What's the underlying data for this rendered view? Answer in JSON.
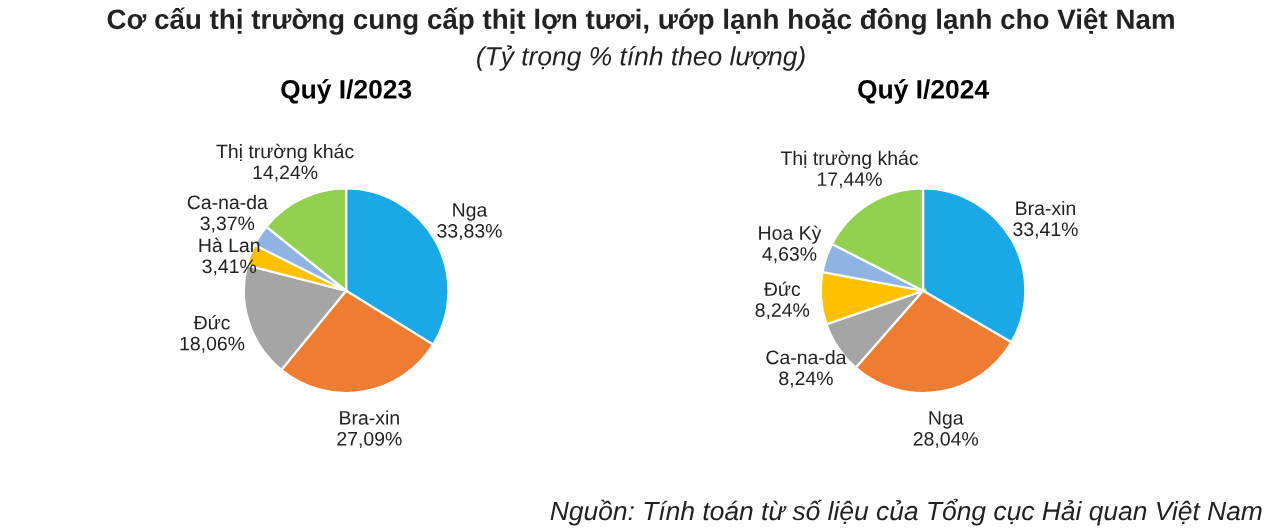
{
  "chart_data": [
    {
      "type": "pie",
      "title": "Quý I/2023",
      "annotations": [
        "Cơ cấu thị trường cung cấp thịt lợn tươi, ướp lạnh hoặc đông lạnh cho Việt Nam",
        "(Tỷ trọng % tính theo lượng)",
        "Nguồn: Tính toán từ số liệu của Tổng cục Hải quan Việt Nam"
      ],
      "categories": [
        "Nga",
        "Bra-xin",
        "Đức",
        "Hà Lan",
        "Ca-na-da",
        "Thị trường khác"
      ],
      "values": [
        33.83,
        27.09,
        18.06,
        3.41,
        3.37,
        14.24
      ],
      "value_labels": [
        "33,83%",
        "27,09%",
        "18,06%",
        "3,41%",
        "3,37%",
        "14,24%"
      ],
      "colors": [
        "#1aa9e6",
        "#ee7d31",
        "#a5a5a5",
        "#ffc000",
        "#8fb4e3",
        "#92d050"
      ],
      "legend": false
    },
    {
      "type": "pie",
      "title": "Quý I/2024",
      "categories": [
        "Bra-xin",
        "Nga",
        "Ca-na-da",
        "Đức",
        "Hoa Kỳ",
        "Thị trường khác"
      ],
      "values": [
        33.41,
        28.04,
        8.24,
        8.24,
        4.63,
        17.44
      ],
      "value_labels": [
        "33,41%",
        "28,04%",
        "8,24%",
        "8,24%",
        "4,63%",
        "17,44%"
      ],
      "colors": [
        "#1aa9e6",
        "#ee7d31",
        "#a5a5a5",
        "#ffc000",
        "#8fb4e3",
        "#92d050"
      ],
      "legend": false
    }
  ]
}
